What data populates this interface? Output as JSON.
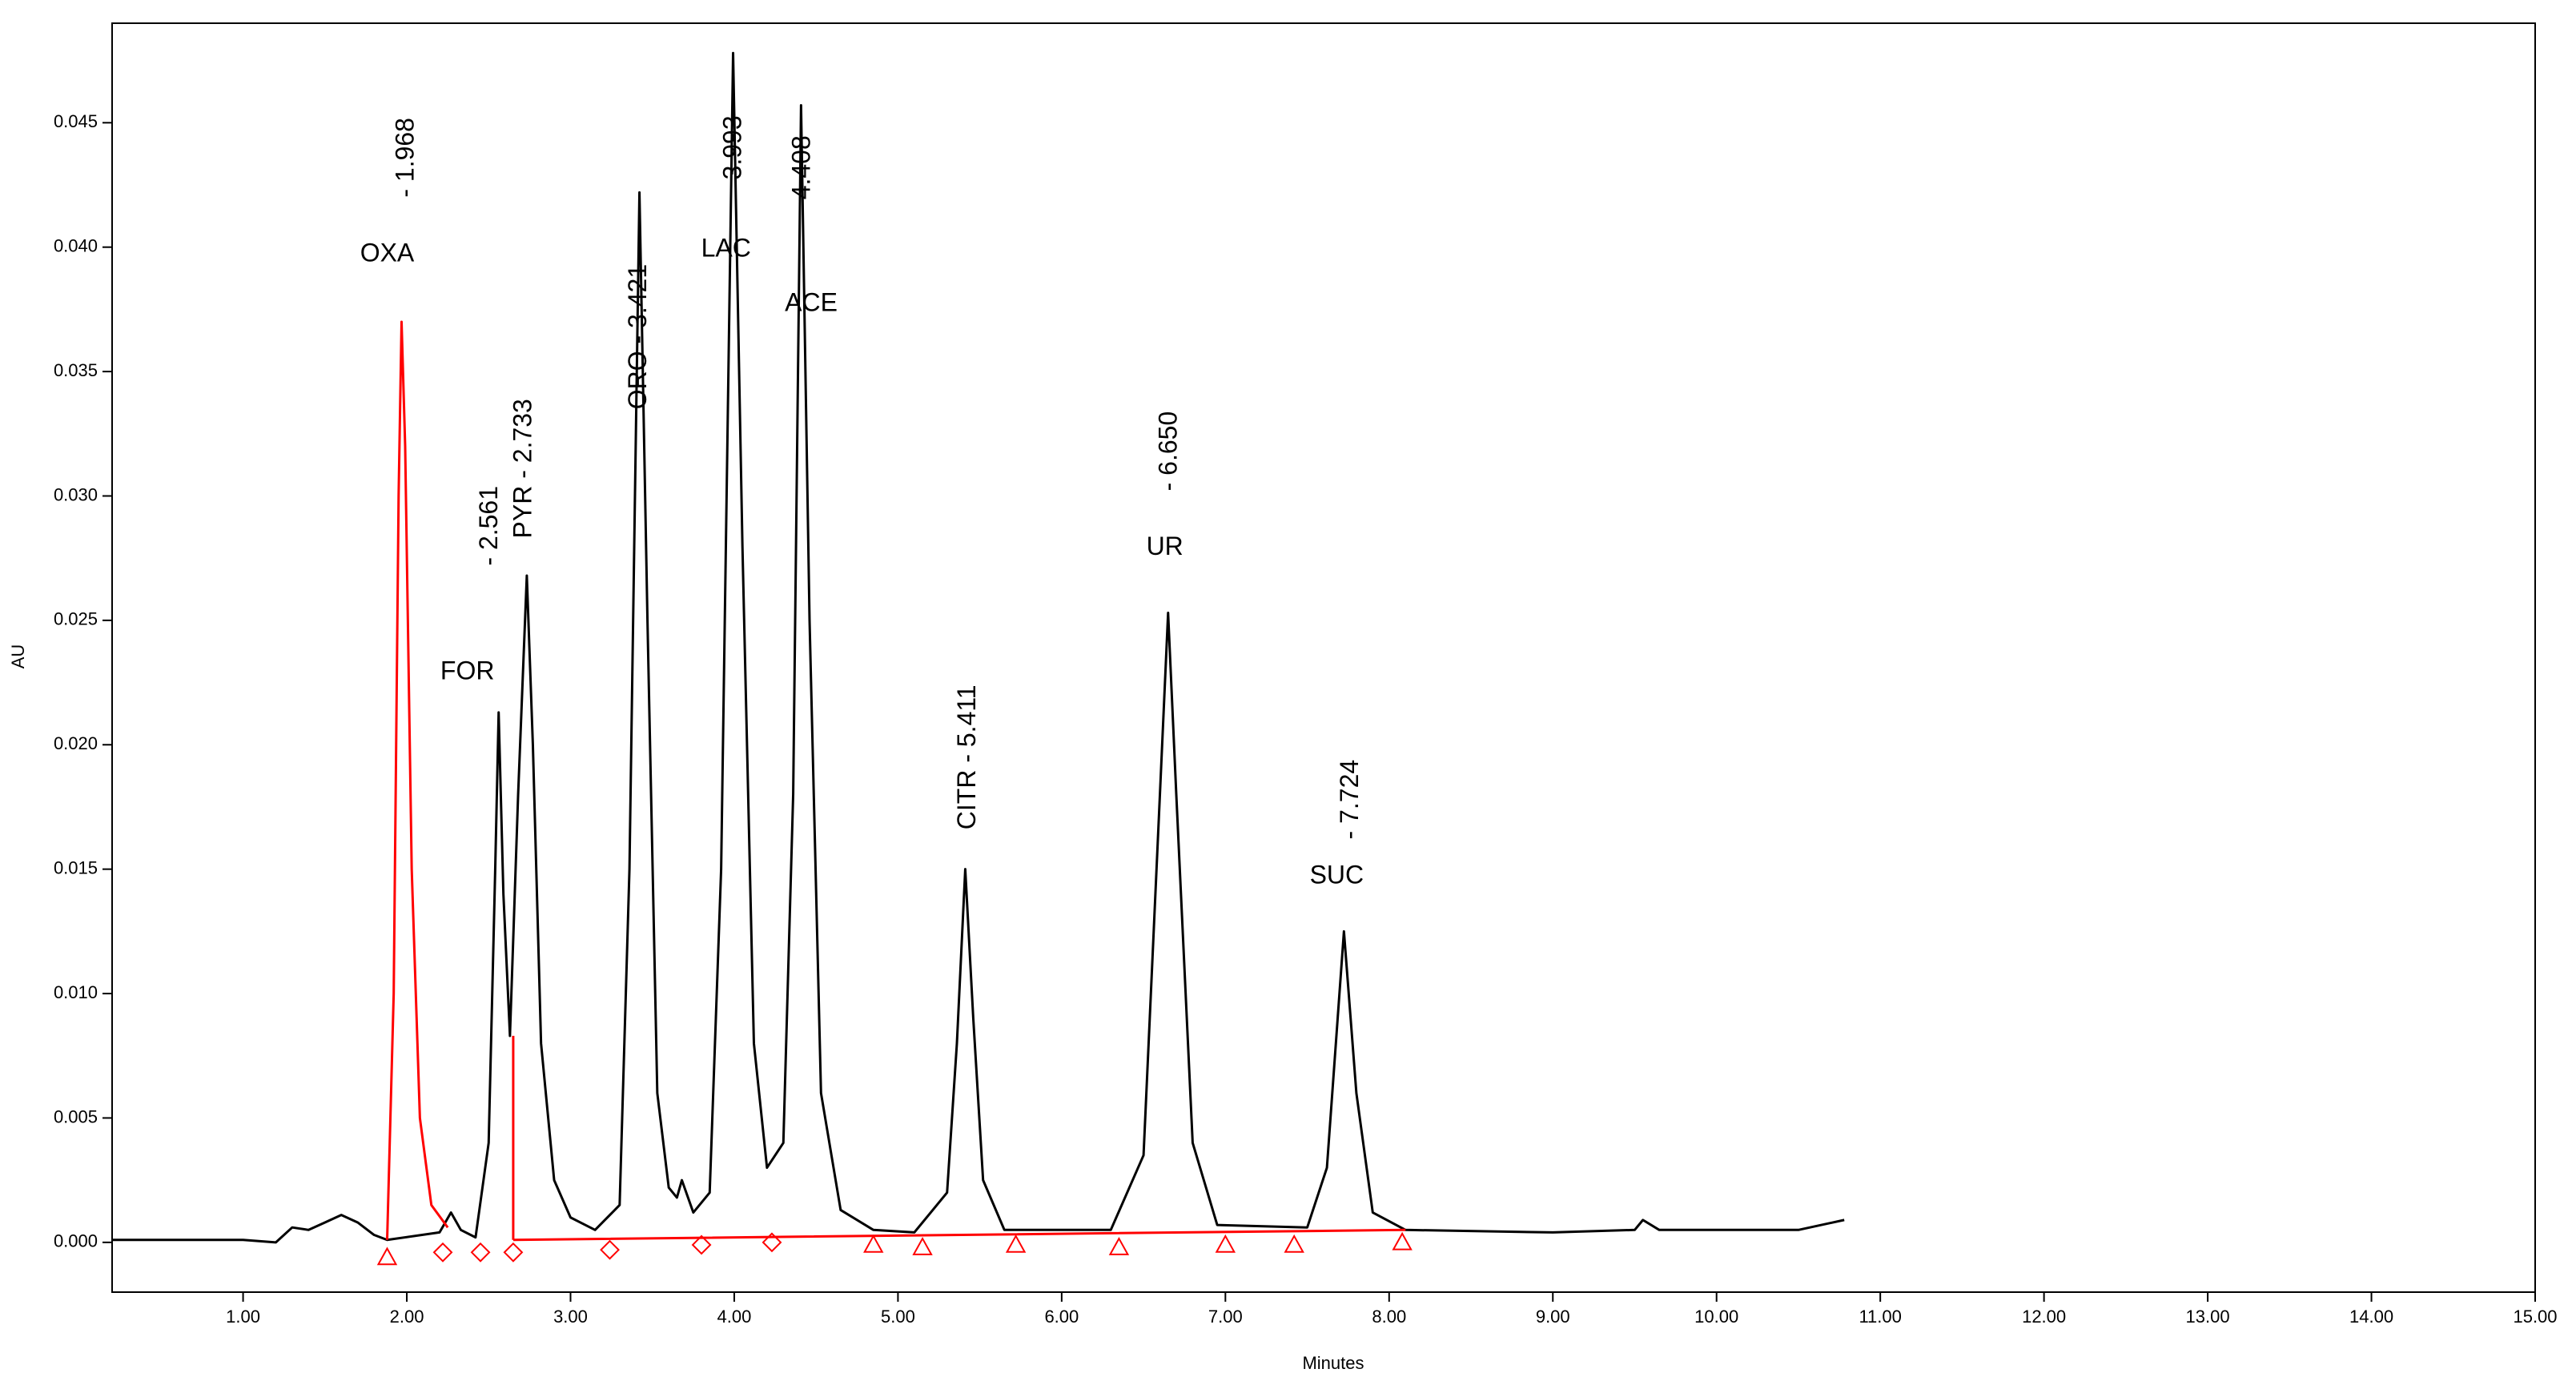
{
  "chart_data": {
    "type": "line",
    "xlabel": "Minutes",
    "ylabel": "AU",
    "xlim": [
      0.2,
      15.0
    ],
    "ylim": [
      -0.002,
      0.049
    ],
    "xticks": [
      {
        "value": 1,
        "label": "1.00"
      },
      {
        "value": 2,
        "label": "2.00"
      },
      {
        "value": 3,
        "label": "3.00"
      },
      {
        "value": 4,
        "label": "4.00"
      },
      {
        "value": 5,
        "label": "5.00"
      },
      {
        "value": 6,
        "label": "6.00"
      },
      {
        "value": 7,
        "label": "7.00"
      },
      {
        "value": 8,
        "label": "8.00"
      },
      {
        "value": 9,
        "label": "9.00"
      },
      {
        "value": 10,
        "label": "10.00"
      },
      {
        "value": 11,
        "label": "11.00"
      },
      {
        "value": 12,
        "label": "12.00"
      },
      {
        "value": 13,
        "label": "13.00"
      },
      {
        "value": 14,
        "label": "14.00"
      },
      {
        "value": 15,
        "label": "15.00"
      }
    ],
    "yticks": [
      {
        "value": 0,
        "label": "0.000"
      },
      {
        "value": 0.005,
        "label": "0.005"
      },
      {
        "value": 0.01,
        "label": "0.010"
      },
      {
        "value": 0.015,
        "label": "0.015"
      },
      {
        "value": 0.02,
        "label": "0.020"
      },
      {
        "value": 0.025,
        "label": "0.025"
      },
      {
        "value": 0.03,
        "label": "0.030"
      },
      {
        "value": 0.035,
        "label": "0.035"
      },
      {
        "value": 0.04,
        "label": "0.040"
      },
      {
        "value": 0.045,
        "label": "0.045"
      }
    ],
    "series": [
      {
        "color": "#000000",
        "x": [
          0.2,
          1.0,
          1.2,
          1.3,
          1.4,
          1.5,
          1.6,
          1.7,
          1.8,
          1.88,
          2.2,
          2.27,
          2.33,
          2.42,
          2.5,
          2.54,
          2.561,
          2.59,
          2.63,
          2.68,
          2.733,
          2.77,
          2.82,
          2.9,
          3.0,
          3.15,
          3.3,
          3.36,
          3.421,
          3.47,
          3.53,
          3.6,
          3.65,
          3.68,
          3.75,
          3.85,
          3.92,
          3.993,
          4.05,
          4.12,
          4.2,
          4.3,
          4.36,
          4.408,
          4.46,
          4.53,
          4.65,
          4.85,
          5.1,
          5.3,
          5.36,
          5.411,
          5.46,
          5.52,
          5.65,
          6.3,
          6.5,
          6.6,
          6.65,
          6.7,
          6.8,
          6.95,
          7.5,
          7.62,
          7.724,
          7.8,
          7.9,
          8.1,
          9.0,
          9.5,
          9.55,
          9.65,
          10.5,
          10.78
        ],
        "values": [
          0.0001,
          0.0001,
          0.0,
          0.0006,
          0.0005,
          0.0008,
          0.0011,
          0.0008,
          0.0003,
          0.0001,
          0.0004,
          0.0012,
          0.0005,
          0.0002,
          0.004,
          0.015,
          0.0213,
          0.014,
          0.0083,
          0.018,
          0.0268,
          0.02,
          0.008,
          0.0025,
          0.001,
          0.0005,
          0.0015,
          0.015,
          0.0422,
          0.025,
          0.006,
          0.0022,
          0.0018,
          0.0025,
          0.0012,
          0.002,
          0.015,
          0.0478,
          0.028,
          0.008,
          0.003,
          0.004,
          0.018,
          0.0457,
          0.025,
          0.006,
          0.0013,
          0.0005,
          0.0004,
          0.002,
          0.008,
          0.015,
          0.009,
          0.0025,
          0.0005,
          0.0005,
          0.0035,
          0.018,
          0.0253,
          0.018,
          0.004,
          0.0007,
          0.0006,
          0.003,
          0.0125,
          0.006,
          0.0012,
          0.0005,
          0.0004,
          0.0005,
          0.0009,
          0.0005,
          0.0005,
          0.0009
        ]
      },
      {
        "color": "#ff0000",
        "x": [
          1.88,
          1.92,
          1.95,
          1.968,
          1.99,
          2.03,
          2.08,
          2.15,
          2.25,
          null,
          2.65,
          2.65,
          null,
          2.65,
          8.1
        ],
        "values": [
          0.0001,
          0.01,
          0.03,
          0.037,
          0.032,
          0.015,
          0.005,
          0.0015,
          0.0006,
          null,
          0.0001,
          0.0083,
          null,
          0.0001,
          0.0005
        ]
      }
    ],
    "markers": [
      {
        "x": 1.88,
        "y": -0.0006,
        "shape": "triangle"
      },
      {
        "x": 2.22,
        "y": -0.0004,
        "shape": "diamond"
      },
      {
        "x": 2.45,
        "y": -0.0004,
        "shape": "diamond"
      },
      {
        "x": 2.65,
        "y": -0.0004,
        "shape": "diamond"
      },
      {
        "x": 3.24,
        "y": -0.0003,
        "shape": "diamond"
      },
      {
        "x": 3.8,
        "y": -0.0001,
        "shape": "diamond"
      },
      {
        "x": 4.23,
        "y": 0.0,
        "shape": "diamond"
      },
      {
        "x": 4.85,
        "y": -0.0001,
        "shape": "triangle"
      },
      {
        "x": 5.15,
        "y": -0.0002,
        "shape": "triangle"
      },
      {
        "x": 5.72,
        "y": -0.0001,
        "shape": "triangle"
      },
      {
        "x": 6.35,
        "y": -0.0002,
        "shape": "triangle"
      },
      {
        "x": 7.0,
        "y": -0.0001,
        "shape": "triangle"
      },
      {
        "x": 7.42,
        "y": -0.0001,
        "shape": "triangle"
      },
      {
        "x": 8.08,
        "y": 0.0,
        "shape": "triangle"
      }
    ],
    "annotations": [
      {
        "text": "OXA",
        "x": 1.88,
        "y": 0.0397,
        "vertical": false
      },
      {
        "text": "- 1.968",
        "x": 2.0,
        "y": 0.0436,
        "vertical": true
      },
      {
        "text": "FOR",
        "x": 2.37,
        "y": 0.0229,
        "vertical": false
      },
      {
        "text": "- 2.561",
        "x": 2.51,
        "y": 0.0288,
        "vertical": true
      },
      {
        "text": "PYR - 2.733",
        "x": 2.72,
        "y": 0.0311,
        "vertical": true
      },
      {
        "text": "ORO - 3.421",
        "x": 3.42,
        "y": 0.0364,
        "vertical": true
      },
      {
        "text": "LAC",
        "x": 3.95,
        "y": 0.0399,
        "vertical": false
      },
      {
        "text": "3.993",
        "x": 4.0,
        "y": 0.044,
        "vertical": true
      },
      {
        "text": "4.408",
        "x": 4.42,
        "y": 0.0432,
        "vertical": true
      },
      {
        "text": "ACE",
        "x": 4.47,
        "y": 0.0377,
        "vertical": false
      },
      {
        "text": "CITR - 5.411",
        "x": 5.43,
        "y": 0.0195,
        "vertical": true
      },
      {
        "text": "- 6.650",
        "x": 6.66,
        "y": 0.0318,
        "vertical": true
      },
      {
        "text": "UR",
        "x": 6.63,
        "y": 0.0279,
        "vertical": false
      },
      {
        "text": "- 7.724",
        "x": 7.77,
        "y": 0.0178,
        "vertical": true
      },
      {
        "text": "SUC",
        "x": 7.68,
        "y": 0.0147,
        "vertical": false
      }
    ]
  }
}
